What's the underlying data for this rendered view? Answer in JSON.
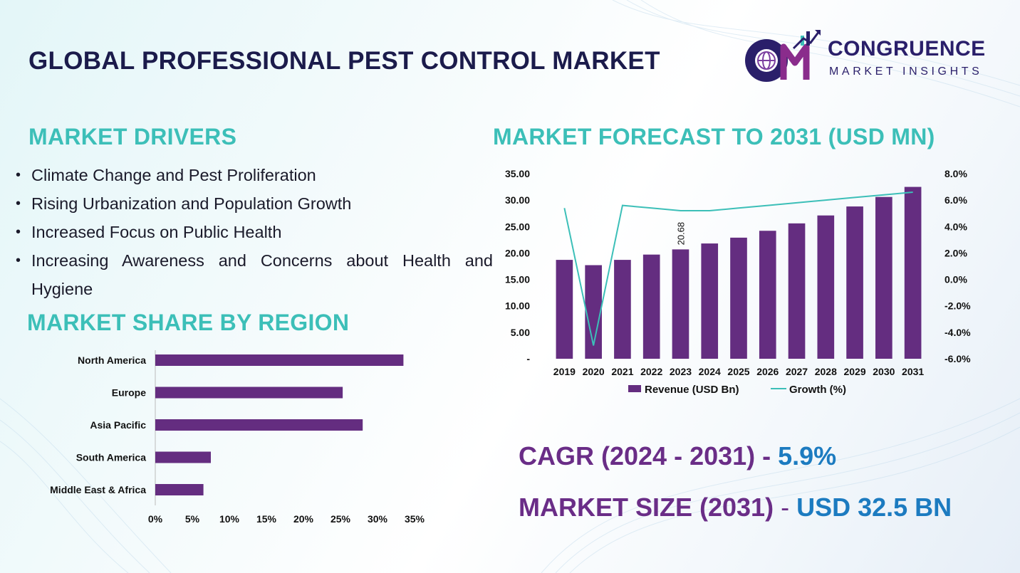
{
  "title": "GLOBAL PROFESSIONAL PEST CONTROL MARKET",
  "logo": {
    "word1": "CONGRUENCE",
    "word2": "MARKET INSIGHTS"
  },
  "drivers": {
    "heading": "MARKET DRIVERS",
    "items": [
      "Climate Change and Pest Proliferation",
      "Rising Urbanization and Population Growth",
      "Increased Focus on Public Health",
      "Increasing Awareness and Concerns about Health and Hygiene"
    ]
  },
  "forecast_heading": "MARKET FORECAST TO 2031 (USD MN)",
  "region_heading": "MARKET SHARE BY REGION",
  "stats": {
    "cagr_label": "CAGR (2024 - 2031)",
    "cagr_sep": " - ",
    "cagr_value": "5.9%",
    "size_label": "MARKET SIZE (2031)",
    "size_sep": " - ",
    "size_value": "USD 32.5 BN"
  },
  "colors": {
    "bar": "#642d80",
    "line": "#3cbfb8",
    "heading": "#3cbfb8",
    "title": "#1b1b4b",
    "accent_blue": "#1c7bc0"
  },
  "chart_data": [
    {
      "type": "bar",
      "combo": "bar+line",
      "categories": [
        "2019",
        "2020",
        "2021",
        "2022",
        "2023",
        "2024",
        "2025",
        "2026",
        "2027",
        "2028",
        "2029",
        "2030",
        "2031"
      ],
      "series": [
        {
          "name": "Revenue (USD Bn)",
          "type": "bar",
          "axis": "left",
          "values": [
            18.7,
            17.7,
            18.7,
            19.7,
            20.68,
            21.8,
            22.9,
            24.2,
            25.6,
            27.1,
            28.8,
            30.6,
            32.5
          ]
        },
        {
          "name": "Growth (%)",
          "type": "line",
          "axis": "right",
          "values": [
            5.4,
            -5.0,
            5.6,
            5.4,
            5.2,
            5.2,
            5.4,
            5.6,
            5.8,
            6.0,
            6.2,
            6.4,
            6.6
          ]
        }
      ],
      "data_labels": [
        {
          "category": "2023",
          "text": "20.68"
        }
      ],
      "y_left": {
        "ticks": [
          "35.00",
          "30.00",
          "25.00",
          "20.00",
          "15.00",
          "10.00",
          "5.00",
          "-"
        ],
        "ylim": [
          0,
          35
        ]
      },
      "y_right": {
        "ticks": [
          "8.0%",
          "6.0%",
          "4.0%",
          "2.0%",
          "0.0%",
          "-2.0%",
          "-4.0%",
          "-6.0%"
        ],
        "ylim": [
          -6,
          8
        ]
      },
      "legend": "bottom"
    },
    {
      "type": "bar",
      "orientation": "horizontal",
      "categories": [
        "North America",
        "Europe",
        "Asia Pacific",
        "South America",
        "Middle East & Africa"
      ],
      "values": [
        33.5,
        25.3,
        28.0,
        7.5,
        6.5
      ],
      "x_ticks": [
        "0%",
        "5%",
        "10%",
        "15%",
        "20%",
        "25%",
        "30%",
        "35%"
      ],
      "xlim": [
        0,
        35
      ]
    }
  ]
}
